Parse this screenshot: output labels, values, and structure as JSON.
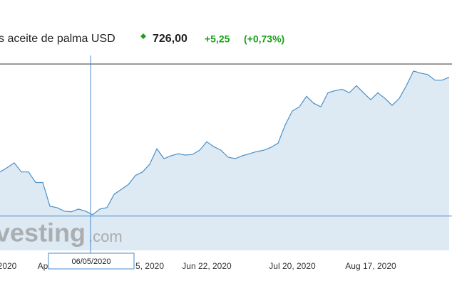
{
  "chart_data": {
    "type": "area",
    "title": "s aceite de palma USD",
    "price": "726,00",
    "change": "+5,25",
    "change_percent": "(+0,73%)",
    "watermark_brand": "vesting",
    "watermark_domain": ".com",
    "tooltip": "06/05/2020",
    "categories": [
      null,
      "2020",
      null,
      null,
      null,
      null,
      "Ap",
      null,
      null,
      null,
      null,
      null,
      null,
      null,
      null,
      null,
      null,
      null,
      null,
      null,
      null,
      "5, 2020",
      null,
      null,
      null,
      null,
      null,
      null,
      null,
      "Jun 22, 2020",
      null,
      null,
      null,
      null,
      null,
      null,
      null,
      null,
      null,
      null,
      null,
      "Jul 20, 2020",
      null,
      null,
      null,
      null,
      null,
      null,
      null,
      null,
      null,
      null,
      "Aug 17, 2020",
      null,
      null,
      null,
      null,
      null,
      null,
      null,
      null,
      null,
      null,
      null
    ],
    "series": [
      {
        "color": "#4a90c8",
        "values": [
          591,
          597,
          604,
          591,
          591,
          576,
          576,
          542,
          540,
          535,
          534,
          538,
          535,
          530,
          538,
          540,
          559,
          566,
          573,
          586,
          591,
          602,
          624,
          610,
          614,
          617,
          615,
          616,
          622,
          634,
          627,
          622,
          612,
          610,
          614,
          617,
          620,
          622,
          626,
          632,
          658,
          678,
          684,
          699,
          689,
          684,
          704,
          707,
          709,
          704,
          714,
          704,
          694,
          704,
          696,
          686,
          696,
          714,
          735,
          732,
          730,
          722,
          722,
          726
        ]
      }
    ],
    "ylim": [
      479,
      745
    ],
    "fill_color": "#dde9f3",
    "tooltip_index": 13
  }
}
